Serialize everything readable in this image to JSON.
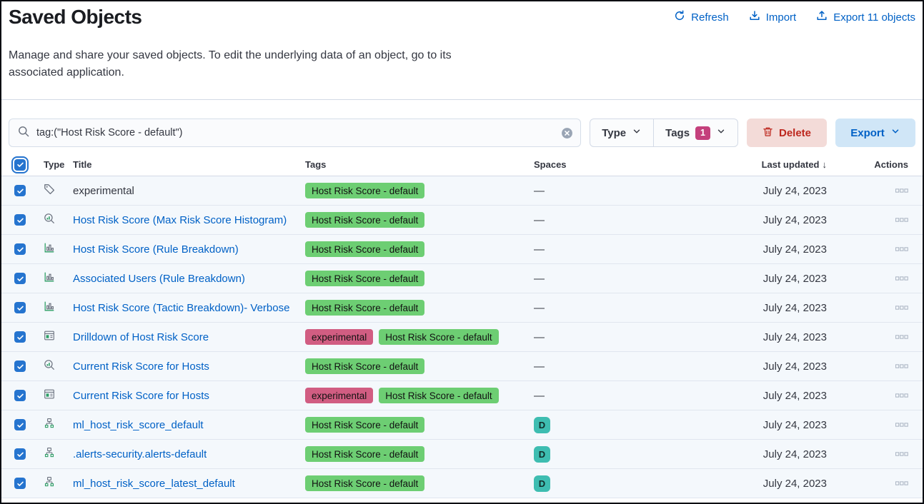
{
  "page": {
    "title": "Saved Objects",
    "description": "Manage and share your saved objects. To edit the underlying data of an object, go to its associated application."
  },
  "header_actions": {
    "refresh_label": "Refresh",
    "import_label": "Import",
    "export_label": "Export 11 objects"
  },
  "toolbar": {
    "search_value": "tag:(\"Host Risk Score - default\")",
    "type_filter_label": "Type",
    "tags_filter_label": "Tags",
    "tags_selected_count": "1",
    "delete_label": "Delete",
    "export_label": "Export"
  },
  "colors": {
    "primary_blue": "#0061c6",
    "checkbox_blue": "#2574cf",
    "danger_red": "#bd271e",
    "tag_green": "#6dce73",
    "tag_pink": "#d15d82",
    "space_teal": "#3ebdb1",
    "row_bg": "#f4f8fc"
  },
  "table": {
    "columns": [
      "Type",
      "Title",
      "Tags",
      "Spaces",
      "Last updated",
      "Actions"
    ],
    "sort_arrow": "↓",
    "empty_spaces": "—",
    "rows": [
      {
        "type_icon": "tag-icon",
        "title": "experimental",
        "is_link": false,
        "tags": [
          {
            "label": "Host Risk Score - default",
            "color": "#6dce73"
          }
        ],
        "space": null,
        "updated": "July 24, 2023"
      },
      {
        "type_icon": "lens-icon",
        "title": "Host Risk Score (Max Risk Score Histogram)",
        "is_link": true,
        "tags": [
          {
            "label": "Host Risk Score - default",
            "color": "#6dce73"
          }
        ],
        "space": null,
        "updated": "July 24, 2023"
      },
      {
        "type_icon": "visualization-icon",
        "title": "Host Risk Score (Rule Breakdown)",
        "is_link": true,
        "tags": [
          {
            "label": "Host Risk Score - default",
            "color": "#6dce73"
          }
        ],
        "space": null,
        "updated": "July 24, 2023"
      },
      {
        "type_icon": "visualization-icon",
        "title": "Associated Users (Rule Breakdown)",
        "is_link": true,
        "tags": [
          {
            "label": "Host Risk Score - default",
            "color": "#6dce73"
          }
        ],
        "space": null,
        "updated": "July 24, 2023"
      },
      {
        "type_icon": "visualization-icon",
        "title": "Host Risk Score (Tactic Breakdown)- Verbose",
        "is_link": true,
        "tags": [
          {
            "label": "Host Risk Score - default",
            "color": "#6dce73"
          }
        ],
        "space": null,
        "updated": "July 24, 2023"
      },
      {
        "type_icon": "dashboard-icon",
        "title": "Drilldown of Host Risk Score",
        "is_link": true,
        "tags": [
          {
            "label": "experimental",
            "color": "#d15d82"
          },
          {
            "label": "Host Risk Score - default",
            "color": "#6dce73"
          }
        ],
        "space": null,
        "updated": "July 24, 2023"
      },
      {
        "type_icon": "lens-icon",
        "title": "Current Risk Score for Hosts",
        "is_link": true,
        "tags": [
          {
            "label": "Host Risk Score - default",
            "color": "#6dce73"
          }
        ],
        "space": null,
        "updated": "July 24, 2023"
      },
      {
        "type_icon": "dashboard-icon",
        "title": "Current Risk Score for Hosts",
        "is_link": true,
        "tags": [
          {
            "label": "experimental",
            "color": "#d15d82"
          },
          {
            "label": "Host Risk Score - default",
            "color": "#6dce73"
          }
        ],
        "space": null,
        "updated": "July 24, 2023"
      },
      {
        "type_icon": "index-pattern-icon",
        "title": "ml_host_risk_score_default",
        "is_link": true,
        "tags": [
          {
            "label": "Host Risk Score - default",
            "color": "#6dce73"
          }
        ],
        "space": "D",
        "updated": "July 24, 2023"
      },
      {
        "type_icon": "index-pattern-icon",
        "title": ".alerts-security.alerts-default",
        "is_link": true,
        "tags": [
          {
            "label": "Host Risk Score - default",
            "color": "#6dce73"
          }
        ],
        "space": "D",
        "updated": "July 24, 2023"
      },
      {
        "type_icon": "index-pattern-icon",
        "title": "ml_host_risk_score_latest_default",
        "is_link": true,
        "tags": [
          {
            "label": "Host Risk Score - default",
            "color": "#6dce73"
          }
        ],
        "space": "D",
        "updated": "July 24, 2023"
      }
    ]
  }
}
